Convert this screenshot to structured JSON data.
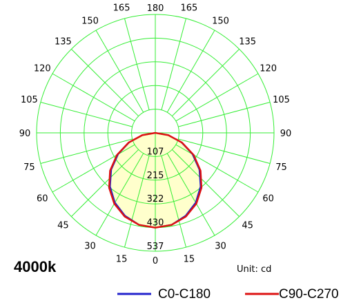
{
  "chart_data": {
    "type": "polar",
    "title": "4000k",
    "unit_label": "Unit: cd",
    "ring_labels": [
      "107",
      "215",
      "322",
      "430",
      "537"
    ],
    "r_max": 537,
    "angle_labels": {
      "top": "180",
      "bottom": "0",
      "left": [
        "165",
        "150",
        "135",
        "120",
        "105",
        "90",
        "75",
        "60",
        "45",
        "30",
        "15"
      ],
      "right": [
        "165",
        "150",
        "135",
        "120",
        "105",
        "90",
        "75",
        "60",
        "45",
        "30",
        "15"
      ]
    },
    "gamma_step_deg": 15,
    "grid": true,
    "grid_color": "#33ee33",
    "fill_color": "#ffffcc",
    "series": [
      {
        "name": "C0-C180",
        "color": "#2222cc",
        "gamma": [
          0,
          10,
          20,
          30,
          40,
          50,
          60,
          70,
          80,
          90
        ],
        "values": [
          430,
          423,
          400,
          365,
          318,
          260,
          194,
          125,
          58,
          0
        ]
      },
      {
        "name": "C90-C270",
        "color": "#dd1111",
        "gamma": [
          0,
          10,
          20,
          30,
          40,
          50,
          60,
          70,
          80,
          90
        ],
        "values": [
          430,
          424,
          404,
          371,
          325,
          267,
          200,
          128,
          60,
          0
        ]
      }
    ],
    "legend_position": "bottom-right"
  }
}
